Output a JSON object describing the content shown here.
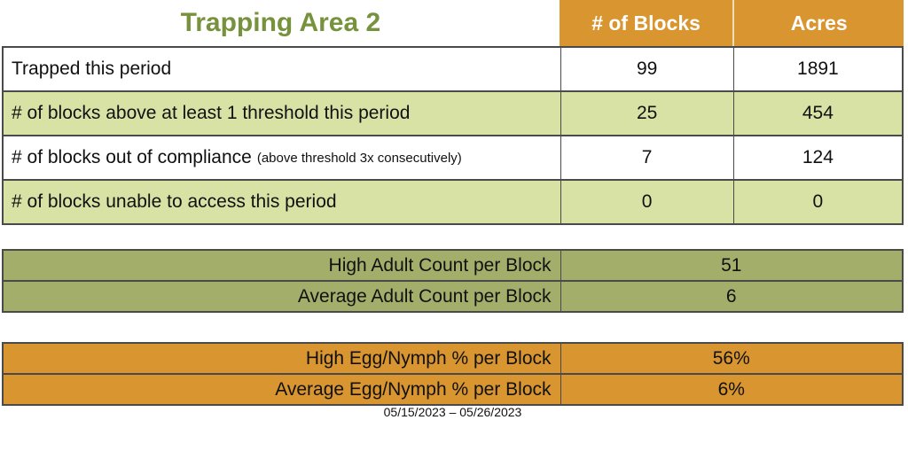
{
  "header": {
    "title": "Trapping Area 2",
    "col_blocks": "# of Blocks",
    "col_acres": "Acres"
  },
  "main_table": {
    "rows": [
      {
        "label": "Trapped this period",
        "sublabel": "",
        "blocks": "99",
        "acres": "1891"
      },
      {
        "label": "# of blocks above at least 1 threshold this period",
        "sublabel": "",
        "blocks": "25",
        "acres": "454"
      },
      {
        "label": "# of blocks out of compliance",
        "sublabel": "(above threshold 3x consecutively)",
        "blocks": "7",
        "acres": "124"
      },
      {
        "label": "# of blocks unable to access this period",
        "sublabel": "",
        "blocks": "0",
        "acres": "0"
      }
    ]
  },
  "adult_table": {
    "rows": [
      {
        "label": "High Adult Count per Block",
        "value": "51"
      },
      {
        "label": "Average Adult Count per Block",
        "value": "6"
      }
    ]
  },
  "egg_table": {
    "rows": [
      {
        "label": "High Egg/Nymph % per Block",
        "value": "56%"
      },
      {
        "label": "Average Egg/Nymph % per Block",
        "value": "6%"
      }
    ]
  },
  "footer": {
    "date_range": "05/15/2023 – 05/26/2023"
  },
  "colors": {
    "orange": "#D9952F",
    "light_green": "#D9E2A5",
    "olive": "#A4AE6B",
    "title_green": "#76923C",
    "border": "#4a4a4a",
    "header_text": "#FFFFFF",
    "body_text": "#111111"
  }
}
